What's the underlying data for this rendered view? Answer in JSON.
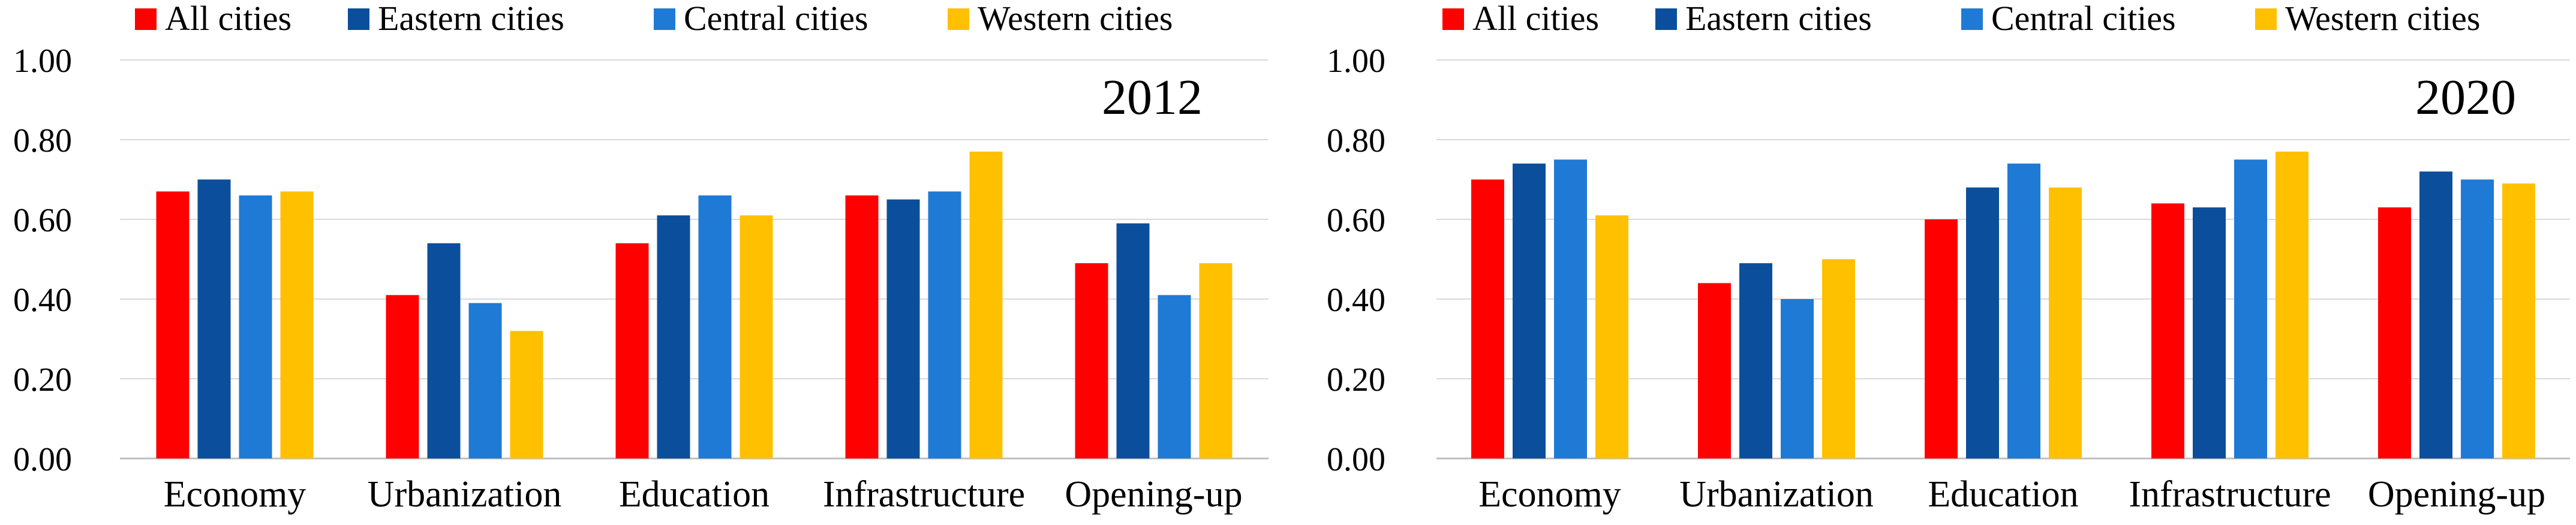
{
  "chart_data": [
    {
      "type": "bar",
      "title": "2012",
      "categories": [
        "Economy",
        "Urbanization",
        "Education",
        "Infrastructure",
        "Opening-up"
      ],
      "series": [
        {
          "name": "All cities",
          "color": "#ff0000",
          "values": [
            0.67,
            0.41,
            0.54,
            0.66,
            0.49
          ]
        },
        {
          "name": "Eastern cities",
          "color": "#0b4f9c",
          "values": [
            0.7,
            0.54,
            0.61,
            0.65,
            0.59
          ]
        },
        {
          "name": "Central cities",
          "color": "#1f7ad6",
          "values": [
            0.66,
            0.39,
            0.66,
            0.67,
            0.41
          ]
        },
        {
          "name": "Western cities",
          "color": "#ffc000",
          "values": [
            0.67,
            0.32,
            0.61,
            0.77,
            0.49
          ]
        }
      ],
      "ylim": [
        0,
        1
      ],
      "yticks": [
        "0.00",
        "0.20",
        "0.40",
        "0.60",
        "0.80",
        "1.00"
      ],
      "grid": true,
      "legend": "top"
    },
    {
      "type": "bar",
      "title": "2020",
      "categories": [
        "Economy",
        "Urbanization",
        "Education",
        "Infrastructure",
        "Opening-up"
      ],
      "series": [
        {
          "name": "All cities",
          "color": "#ff0000",
          "values": [
            0.7,
            0.44,
            0.6,
            0.64,
            0.63
          ]
        },
        {
          "name": "Eastern cities",
          "color": "#0b4f9c",
          "values": [
            0.74,
            0.49,
            0.68,
            0.63,
            0.72
          ]
        },
        {
          "name": "Central cities",
          "color": "#1f7ad6",
          "values": [
            0.75,
            0.4,
            0.74,
            0.75,
            0.7
          ]
        },
        {
          "name": "Western cities",
          "color": "#ffc000",
          "values": [
            0.61,
            0.5,
            0.68,
            0.77,
            0.69
          ]
        }
      ],
      "ylim": [
        0,
        1
      ],
      "yticks": [
        "0.00",
        "0.20",
        "0.40",
        "0.60",
        "0.80",
        "1.00"
      ],
      "grid": true,
      "legend": "top"
    }
  ]
}
